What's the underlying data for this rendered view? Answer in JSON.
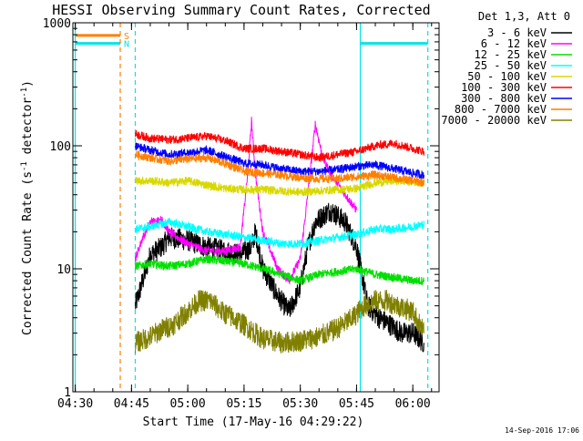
{
  "chart_data": {
    "type": "line",
    "title": "HESSI Observing Summary Count Rates, Corrected",
    "xlabel": "Start Time (17-May-16 04:29:22)",
    "ylabel": "Corrected Count Rate (s",
    "ylabel_sup1": "-1",
    "ylabel_mid": " detector",
    "ylabel_sup2": "-1",
    "ylabel_end": ")",
    "y_scale": "log",
    "ylim": [
      1,
      1000
    ],
    "xlim": [
      "04:29:22",
      "06:07:00"
    ],
    "x_ticks": [
      "04:30",
      "04:45",
      "05:00",
      "05:15",
      "05:30",
      "05:45",
      "06:00"
    ],
    "y_ticks": [
      {
        "value": 1,
        "label": "1"
      },
      {
        "value": 10,
        "label": "10"
      },
      {
        "value": 100,
        "label": "100"
      },
      {
        "value": 1000,
        "label": "1000"
      }
    ],
    "legend_position": "right",
    "legend_header": "Det 1,3, Att 0",
    "annotations": [
      {
        "kind": "bar",
        "label": "S",
        "color": "#ff7f00",
        "from": "04:30",
        "to": "04:42",
        "value": 790
      },
      {
        "kind": "bar",
        "label": "N",
        "color": "#00e5e5",
        "from": "04:30",
        "to": "04:42",
        "value": 680
      },
      {
        "kind": "bar",
        "label": "",
        "color": "#00e5e5",
        "from": "05:46",
        "to": "06:04",
        "value": 680
      },
      {
        "kind": "vline",
        "label": "",
        "color": "#ff7f00",
        "style": "dashed",
        "at": "04:42"
      },
      {
        "kind": "vline",
        "label": "",
        "color": "#00e5e5",
        "style": "dashed",
        "at": "04:46"
      },
      {
        "kind": "vline",
        "label": "",
        "color": "#00e5e5",
        "style": "dashed",
        "at": "06:04"
      },
      {
        "kind": "vline",
        "label": "",
        "color": "#00e5e5",
        "style": "solid",
        "at": "04:30"
      },
      {
        "kind": "vline",
        "label": "",
        "color": "#00e5e5",
        "style": "solid",
        "at": "05:46"
      }
    ],
    "series": [
      {
        "name": "3 - 6 keV",
        "color": "#000000",
        "x": [
          "04:46",
          "04:48",
          "04:50",
          "04:53",
          "04:55",
          "05:00",
          "05:05",
          "05:10",
          "05:14",
          "05:17",
          "05:18",
          "05:20",
          "05:24",
          "05:27",
          "05:30",
          "05:32",
          "05:34",
          "05:38",
          "05:42",
          "05:45",
          "05:48",
          "05:51",
          "05:54",
          "05:57",
          "06:00",
          "06:03"
        ],
        "y": [
          5,
          8,
          13,
          15,
          18,
          17,
          15,
          14,
          13,
          15,
          20,
          10,
          6,
          4.5,
          7,
          15,
          24,
          30,
          24,
          15,
          5,
          4,
          3.5,
          3,
          3,
          2.5
        ]
      },
      {
        "name": "6 - 12 keV",
        "color": "#ff00ff",
        "x": [
          "04:46",
          "04:48",
          "04:50",
          "04:53",
          "04:55",
          "05:00",
          "05:05",
          "05:10",
          "05:14",
          "05:16",
          "05:17",
          "05:18",
          "05:20",
          "05:24",
          "05:27",
          "05:30",
          "05:32",
          "05:34",
          "05:36",
          "05:38",
          "05:42",
          "05:45"
        ],
        "y": [
          12,
          18,
          24,
          25,
          20,
          16,
          14,
          14,
          15,
          60,
          160,
          60,
          20,
          10,
          8,
          12,
          40,
          150,
          80,
          60,
          40,
          30
        ]
      },
      {
        "name": "12 - 25 keV",
        "color": "#00e000",
        "x": [
          "04:46",
          "04:50",
          "04:55",
          "05:00",
          "05:05",
          "05:10",
          "05:15",
          "05:20",
          "05:25",
          "05:30",
          "05:35",
          "05:40",
          "05:45",
          "05:50",
          "05:55",
          "06:00",
          "06:03"
        ],
        "y": [
          10.5,
          11,
          10.5,
          11,
          12,
          11.5,
          11,
          10,
          9,
          8,
          9,
          9.5,
          10,
          9,
          8.5,
          8,
          8
        ]
      },
      {
        "name": "25 - 50 keV",
        "color": "#00ffff",
        "x": [
          "04:46",
          "04:50",
          "04:55",
          "05:00",
          "05:05",
          "05:10",
          "05:15",
          "05:20",
          "05:25",
          "05:30",
          "05:35",
          "05:40",
          "05:45",
          "05:50",
          "05:55",
          "06:00",
          "06:03"
        ],
        "y": [
          21,
          22,
          24,
          22,
          20,
          19,
          18,
          17,
          16,
          16,
          17,
          18,
          19,
          21,
          21,
          22,
          23
        ]
      },
      {
        "name": "50 - 100 keV",
        "color": "#d8d800",
        "x": [
          "04:46",
          "04:50",
          "04:55",
          "05:00",
          "05:05",
          "05:10",
          "05:15",
          "05:20",
          "05:25",
          "05:30",
          "05:35",
          "05:40",
          "05:45",
          "05:50",
          "05:55",
          "06:00",
          "06:03"
        ],
        "y": [
          52,
          52,
          50,
          52,
          48,
          45,
          44,
          44,
          43,
          42,
          43,
          44,
          45,
          50,
          52,
          51,
          50
        ]
      },
      {
        "name": "100 - 300 keV",
        "color": "#ff0000",
        "x": [
          "04:46",
          "04:50",
          "04:55",
          "05:00",
          "05:05",
          "05:10",
          "05:15",
          "05:20",
          "05:25",
          "05:30",
          "05:35",
          "05:40",
          "05:45",
          "05:50",
          "05:55",
          "06:00",
          "06:03"
        ],
        "y": [
          125,
          115,
          112,
          115,
          120,
          110,
          95,
          95,
          90,
          85,
          80,
          85,
          90,
          100,
          105,
          95,
          90
        ]
      },
      {
        "name": "300 - 800 keV",
        "color": "#0000ff",
        "x": [
          "04:46",
          "04:50",
          "04:55",
          "05:00",
          "05:05",
          "05:10",
          "05:15",
          "05:20",
          "05:25",
          "05:30",
          "05:35",
          "05:40",
          "05:45",
          "05:50",
          "05:55",
          "06:00",
          "06:03"
        ],
        "y": [
          100,
          92,
          85,
          88,
          92,
          82,
          72,
          70,
          65,
          62,
          62,
          64,
          68,
          70,
          65,
          60,
          58
        ]
      },
      {
        "name": "800 - 7000 keV",
        "color": "#ff7f00",
        "x": [
          "04:46",
          "04:50",
          "04:55",
          "05:00",
          "05:05",
          "05:10",
          "05:15",
          "05:20",
          "05:25",
          "05:30",
          "05:35",
          "05:40",
          "05:45",
          "05:50",
          "05:55",
          "06:00",
          "06:03"
        ],
        "y": [
          85,
          80,
          75,
          78,
          80,
          72,
          62,
          60,
          58,
          55,
          54,
          54,
          56,
          58,
          55,
          52,
          50
        ]
      },
      {
        "name": "7000 - 20000 keV",
        "color": "#808000",
        "x": [
          "04:46",
          "04:50",
          "04:53",
          "04:56",
          "05:00",
          "05:03",
          "05:06",
          "05:09",
          "05:12",
          "05:15",
          "05:20",
          "05:25",
          "05:30",
          "05:35",
          "05:40",
          "05:44",
          "05:47",
          "05:50",
          "05:53",
          "05:56",
          "06:00",
          "06:03"
        ],
        "y": [
          2.5,
          2.8,
          3.2,
          3.5,
          4.5,
          5.5,
          5.5,
          4.5,
          4,
          3.5,
          2.7,
          2.5,
          2.6,
          2.8,
          3.3,
          4,
          5,
          5.5,
          5.5,
          5,
          4.5,
          3
        ]
      }
    ]
  },
  "footer_date": "14-Sep-2016 17:06"
}
